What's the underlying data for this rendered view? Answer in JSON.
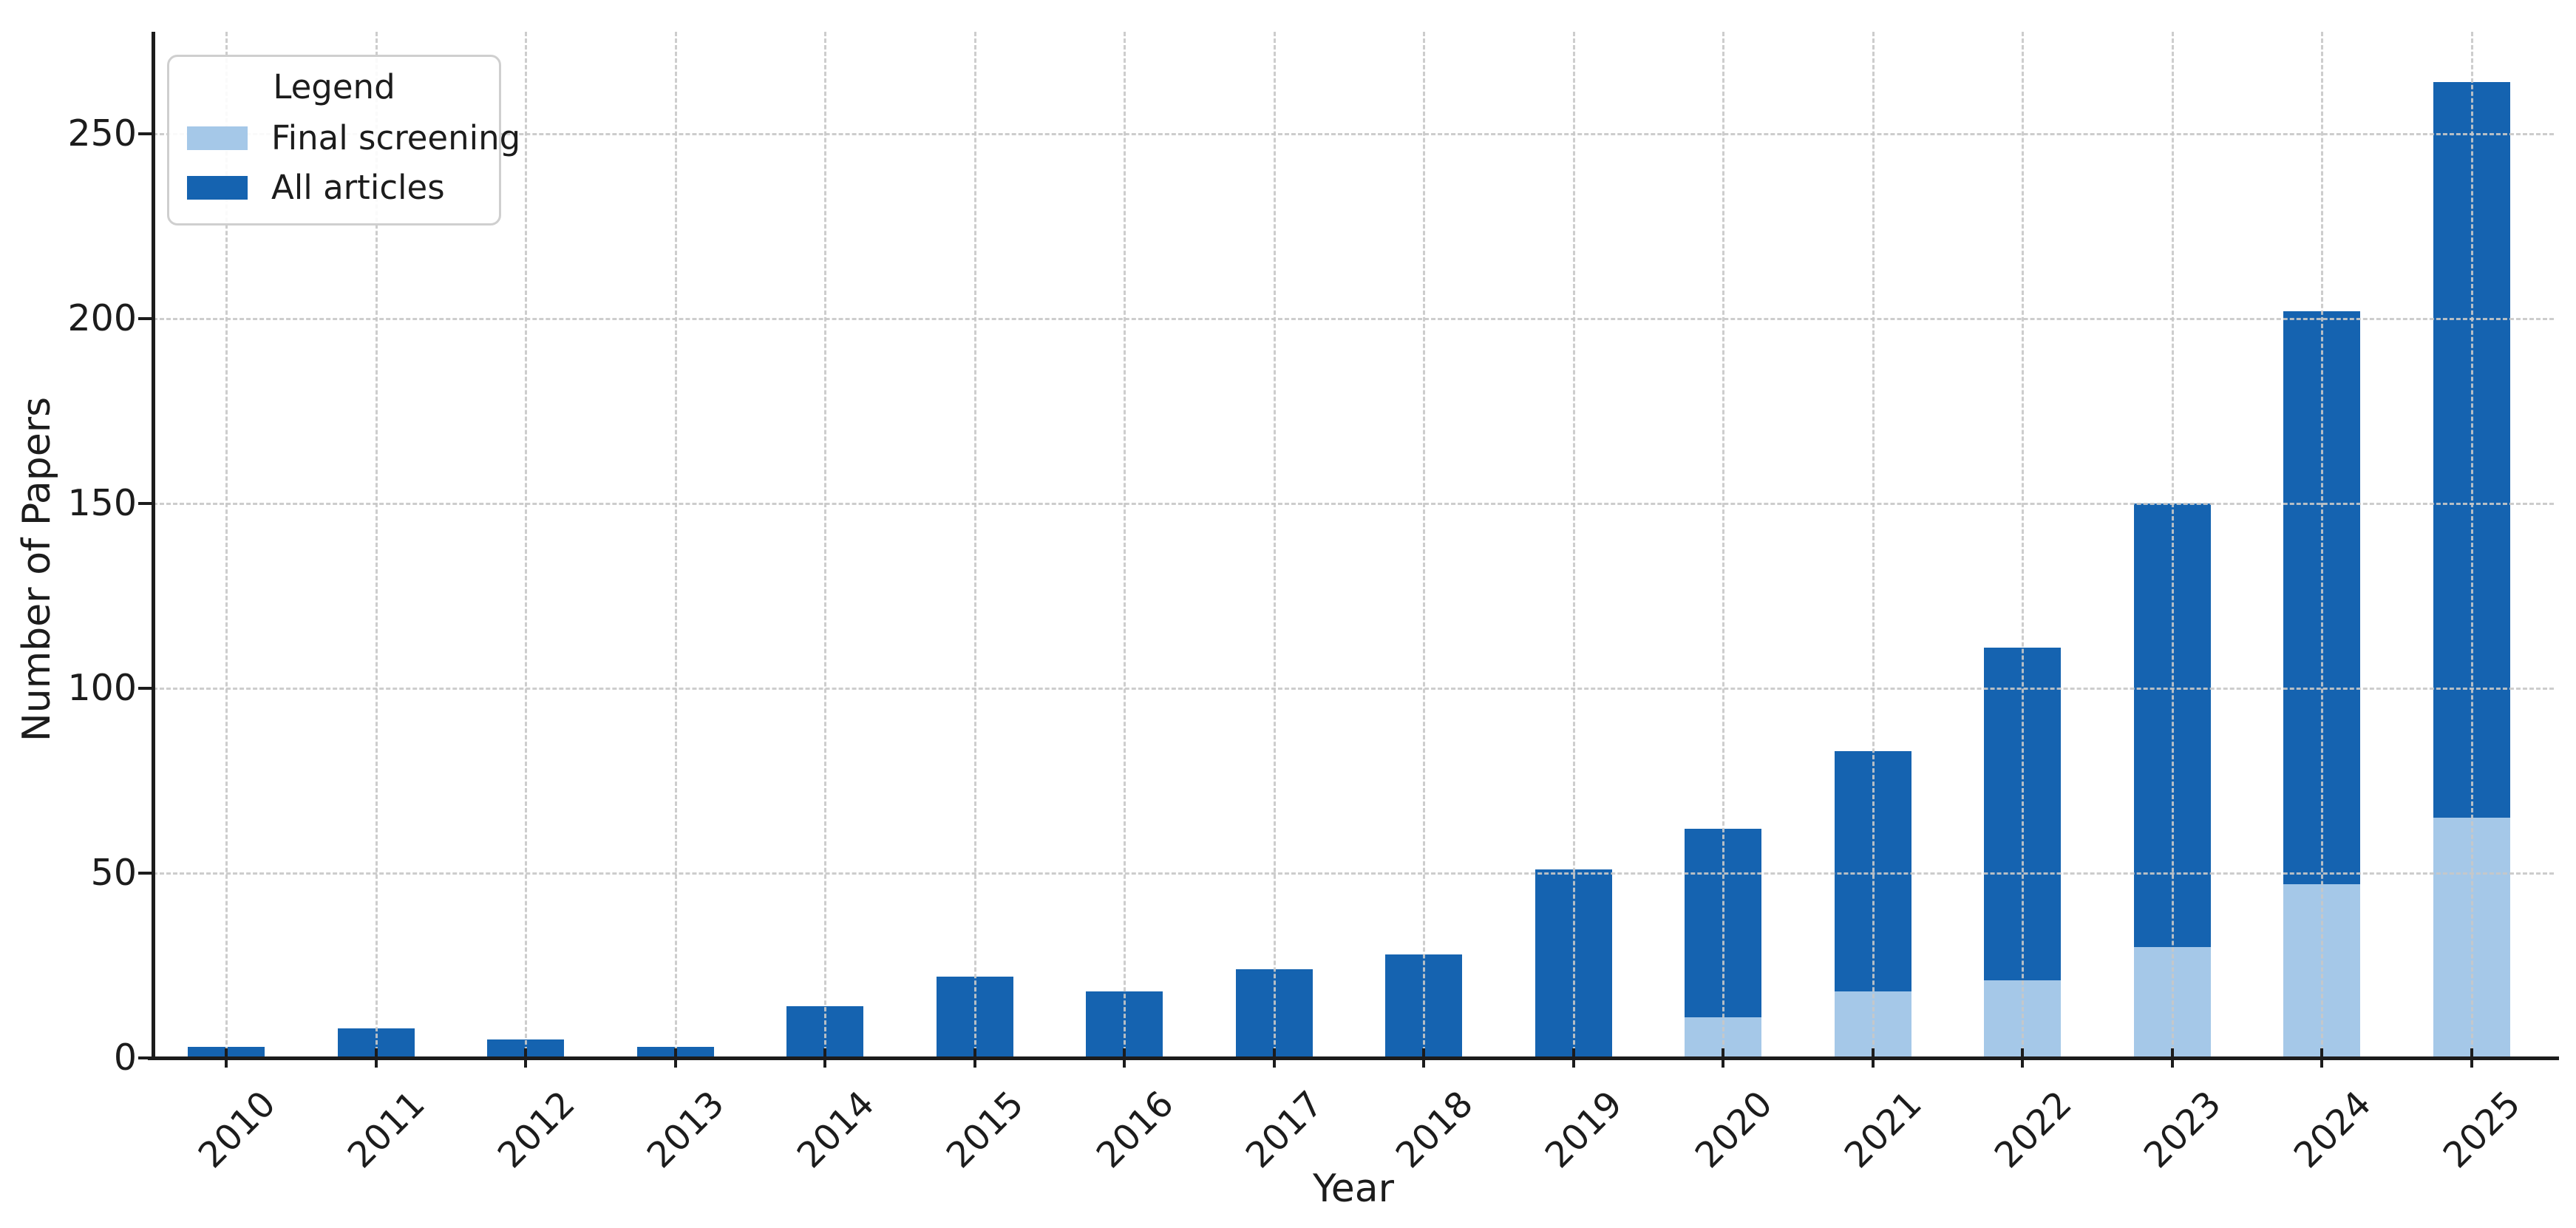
{
  "chart_data": {
    "type": "bar",
    "bar_mode": "overlay",
    "title": "",
    "xlabel": "Year",
    "ylabel": "Number of Papers",
    "categories": [
      "2010",
      "2011",
      "2012",
      "2013",
      "2014",
      "2015",
      "2016",
      "2017",
      "2018",
      "2019",
      "2020",
      "2021",
      "2022",
      "2023",
      "2024",
      "2025"
    ],
    "series": [
      {
        "name": "Final screening",
        "color": "#a5c8e8",
        "values": [
          0,
          0,
          0,
          0,
          0,
          0,
          0,
          0,
          0,
          0,
          11,
          18,
          21,
          30,
          47,
          65
        ]
      },
      {
        "name": "All articles",
        "color": "#1563b0",
        "values": [
          3,
          8,
          5,
          3,
          14,
          22,
          18,
          24,
          28,
          51,
          62,
          83,
          111,
          150,
          202,
          264
        ]
      }
    ],
    "ylim": [
      0,
      277
    ],
    "yticks": [
      0,
      50,
      100,
      150,
      200,
      250
    ],
    "grid": true,
    "grid_style": "dashed",
    "grid_color": "#c8c8c8",
    "legend": {
      "title": "Legend",
      "position": "upper left"
    },
    "axis_color": "#1c1c1c",
    "xtick_rotation": 45
  }
}
